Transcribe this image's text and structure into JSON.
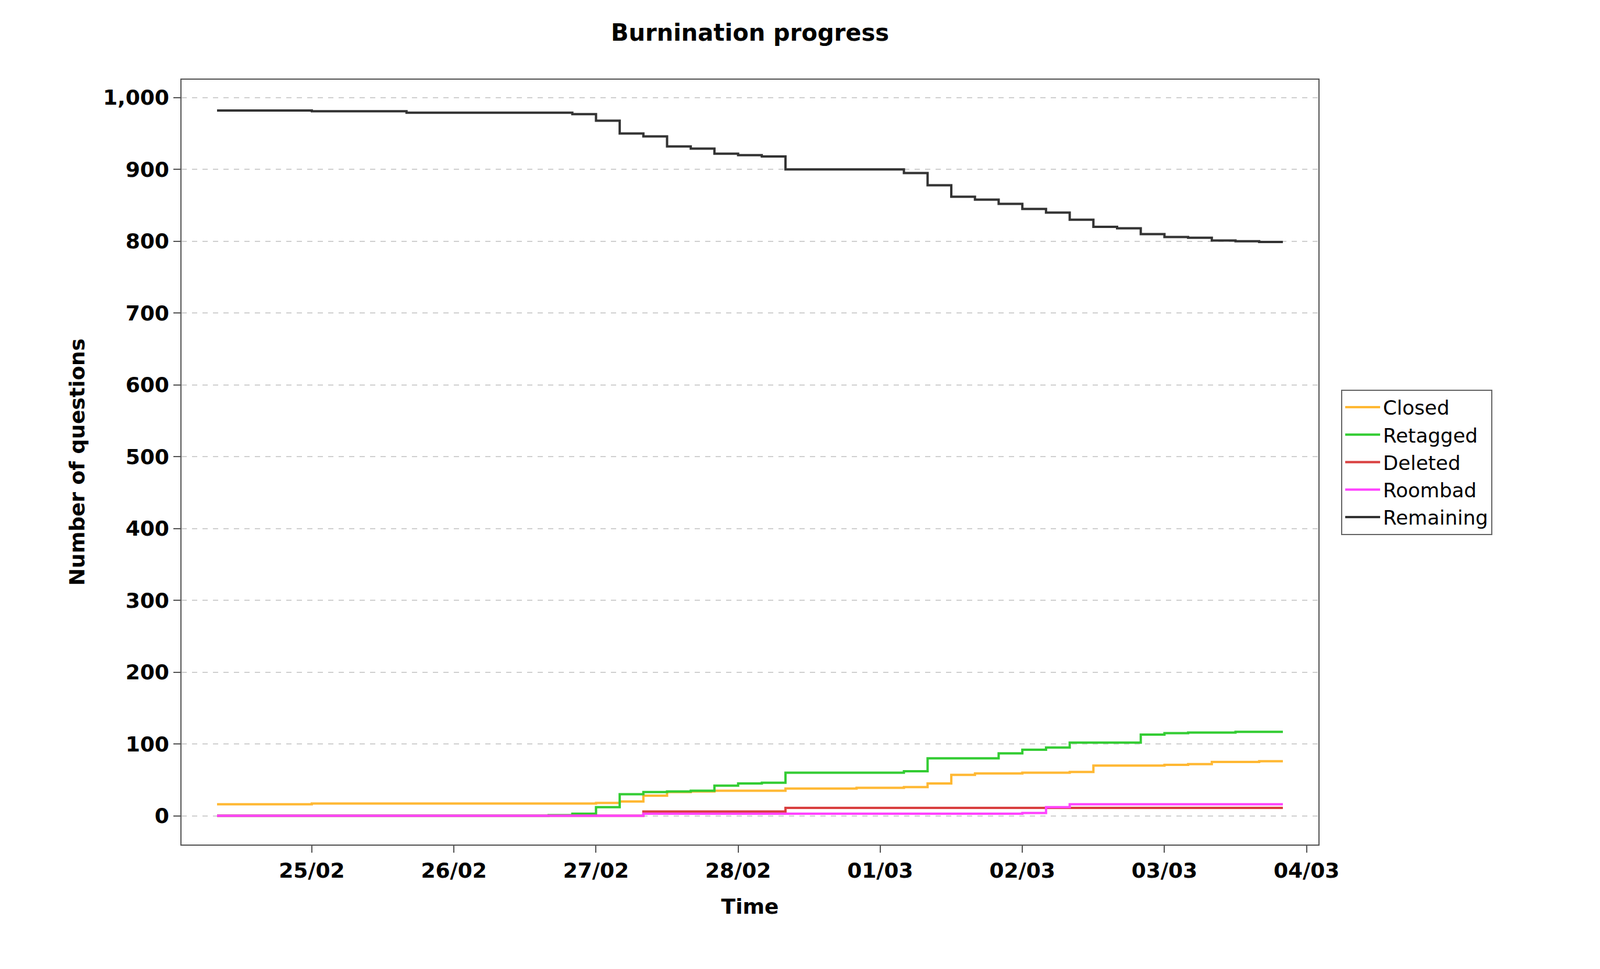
{
  "chart_data": {
    "type": "line",
    "title": "Burnination progress",
    "x_label": "Time",
    "y_label": "Number of questions",
    "categories": [
      null,
      null,
      null,
      null,
      "25/02",
      null,
      null,
      null,
      null,
      null,
      "26/02",
      null,
      null,
      null,
      null,
      null,
      "27/02",
      null,
      null,
      null,
      null,
      null,
      "28/02",
      null,
      null,
      null,
      null,
      null,
      "01/03",
      null,
      null,
      null,
      null,
      null,
      "02/03",
      null,
      null,
      null,
      null,
      null,
      "03/03",
      null,
      null,
      null,
      null,
      null,
      "04/03"
    ],
    "series": [
      {
        "name": "Closed",
        "color": "#ffb833",
        "values": [
          16,
          16,
          16,
          16,
          17,
          17,
          17,
          17,
          17,
          17,
          17,
          17,
          17,
          17,
          17,
          17,
          18,
          20,
          28,
          33,
          34,
          35,
          35,
          35,
          38,
          38,
          38,
          39,
          39,
          40,
          45,
          57,
          59,
          59,
          60,
          60,
          61,
          70,
          70,
          70,
          71,
          72,
          75,
          75,
          76,
          76,
          null
        ]
      },
      {
        "name": "Retagged",
        "color": "#33cc33",
        "values": [
          0,
          0,
          0,
          0,
          0,
          0,
          0,
          0,
          0,
          0,
          0,
          0,
          0,
          0,
          1,
          3,
          12,
          30,
          33,
          34,
          35,
          42,
          45,
          46,
          60,
          60,
          60,
          60,
          60,
          62,
          80,
          80,
          80,
          87,
          92,
          95,
          102,
          102,
          102,
          113,
          115,
          116,
          116,
          117,
          117,
          117,
          null
        ]
      },
      {
        "name": "Deleted",
        "color": "#d94040",
        "values": [
          0,
          0,
          0,
          0,
          0,
          0,
          0,
          0,
          0,
          0,
          0,
          0,
          0,
          0,
          0,
          0,
          0,
          0,
          6,
          6,
          6,
          6,
          6,
          6,
          11,
          11,
          11,
          11,
          11,
          11,
          11,
          11,
          11,
          11,
          11,
          11,
          11,
          11,
          11,
          11,
          11,
          11,
          11,
          11,
          11,
          11,
          null
        ]
      },
      {
        "name": "Roombad",
        "color": "#ff44ff",
        "values": [
          0,
          0,
          0,
          0,
          0,
          0,
          0,
          0,
          0,
          0,
          0,
          0,
          0,
          0,
          0,
          0,
          0,
          0,
          3,
          3,
          3,
          3,
          3,
          3,
          3,
          3,
          3,
          3,
          3,
          3,
          3,
          3,
          3,
          3,
          4,
          12,
          16,
          16,
          16,
          16,
          16,
          16,
          16,
          16,
          16,
          16,
          null
        ]
      },
      {
        "name": "Remaining",
        "color": "#333333",
        "values": [
          982,
          982,
          982,
          982,
          981,
          981,
          981,
          981,
          979,
          979,
          979,
          979,
          979,
          979,
          979,
          977,
          968,
          950,
          946,
          932,
          929,
          922,
          920,
          918,
          900,
          900,
          900,
          900,
          900,
          895,
          878,
          862,
          858,
          852,
          845,
          840,
          830,
          820,
          818,
          810,
          806,
          805,
          801,
          800,
          799,
          799,
          null
        ]
      }
    ],
    "ylim": [
      -40,
      1025
    ],
    "yticks": [
      0,
      100,
      200,
      300,
      400,
      500,
      600,
      700,
      800,
      900,
      {
        "value": 1000,
        "label": "1,000"
      }
    ],
    "grid": true,
    "legend": "right"
  }
}
